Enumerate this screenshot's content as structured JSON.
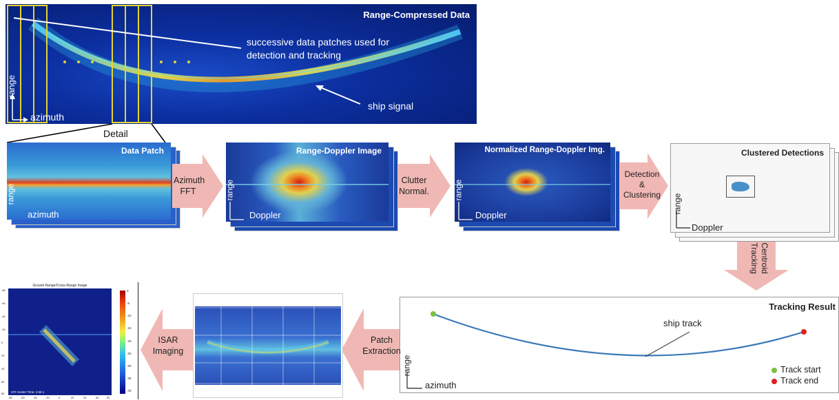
{
  "top": {
    "title": "Range-Compressed Data",
    "annotation": "successive data patches used for\ndetection and tracking",
    "ship_signal": "ship signal",
    "axis_range": "range",
    "axis_azimuth": "azimuth",
    "detail": "Detail"
  },
  "row2": {
    "patch_title": "Data Patch",
    "patch_range": "range",
    "patch_azimuth": "azimuth",
    "step1": "Azimuth\nFFT",
    "rd_title": "Range-Doppler Image",
    "rd_range": "range",
    "rd_doppler": "Doppler",
    "step2": "Clutter\nNormal.",
    "nrd_title": "Normalized Range-Doppler Img.",
    "nrd_range": "range",
    "nrd_doppler": "Doppler",
    "step3": "Detection\n&\nClustering",
    "clust_title": "Clustered Detections",
    "clust_range": "range",
    "clust_doppler": "Doppler"
  },
  "down_step": "Centroid\nTracking",
  "row3": {
    "track_title": "Tracking Result",
    "ship_track": "ship track",
    "track_range": "range",
    "track_azimuth": "azimuth",
    "legend_start": "Track start",
    "legend_end": "Track end",
    "step4": "Patch\nExtraction",
    "step5": "ISAR\nImaging",
    "isar_title": "Ground Range/Cross-Range Image",
    "isar_caption": "CPI Center Time: 2.56 s",
    "isar_xticks": [
      "-80",
      "-60",
      "-40",
      "-20",
      "0",
      "20",
      "40",
      "60",
      "80"
    ],
    "isar_yticks": [
      "-80",
      "-60",
      "-40",
      "-20",
      "0",
      "20",
      "40",
      "60",
      "80"
    ],
    "colorbar_ticks": [
      "0",
      "-5",
      "-10",
      "-15",
      "-20",
      "-25",
      "-30",
      "-35",
      "-40"
    ]
  },
  "colors": {
    "radar_bg": "#0a2a8a",
    "arrow": "#f0b8b4",
    "patch_box": "#e6d430",
    "track_line": "#3a78b8",
    "track_start": "#7ac143",
    "track_end": "#e02020"
  }
}
